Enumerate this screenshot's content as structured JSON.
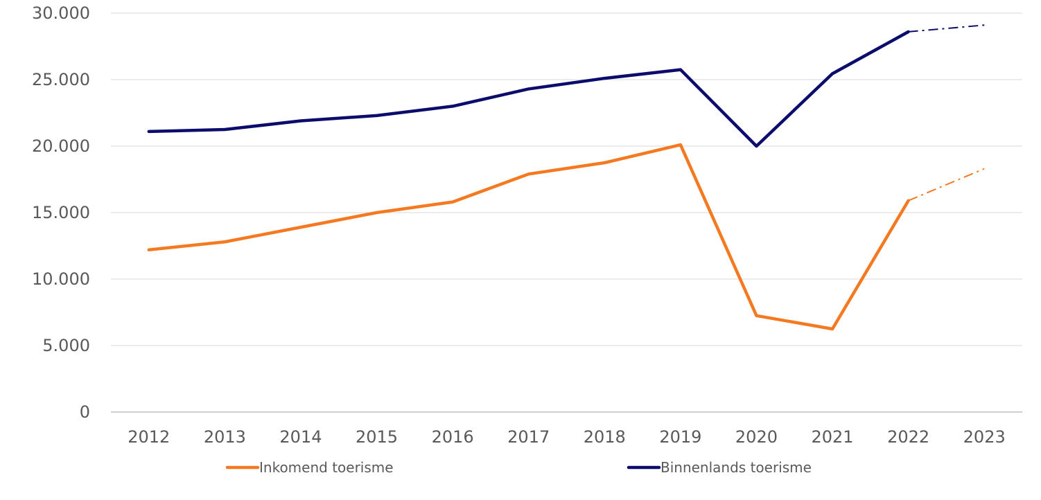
{
  "chart_data": {
    "type": "line",
    "x": [
      "2012",
      "2013",
      "2014",
      "2015",
      "2016",
      "2017",
      "2018",
      "2019",
      "2020",
      "2021",
      "2022",
      "2023"
    ],
    "y_ticks": [
      "0",
      "5.000",
      "10.000",
      "15.000",
      "20.000",
      "25.000",
      "30.000"
    ],
    "ylim": [
      0,
      30000
    ],
    "grid": true,
    "legend_position": "bottom",
    "projected_from": "2022",
    "series": [
      {
        "name": "Inkomend toerisme",
        "color": "#f47920",
        "values": [
          12200,
          12800,
          13900,
          15000,
          15800,
          17900,
          18750,
          20100,
          7250,
          6250,
          15900,
          18300
        ]
      },
      {
        "name": "Binnenlands toerisme",
        "color": "#0c0c6d",
        "values": [
          21100,
          21250,
          21900,
          22300,
          23000,
          24300,
          25100,
          25750,
          20000,
          25450,
          28600,
          29100
        ]
      }
    ]
  }
}
